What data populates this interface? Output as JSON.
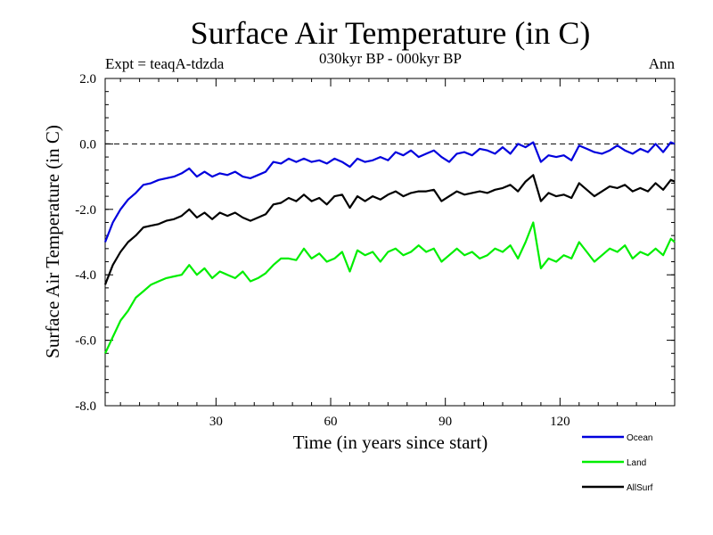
{
  "chart_data": {
    "type": "line",
    "title": "Surface Air Temperature (in C)",
    "subtitle": "030kyr BP - 000kyr BP",
    "experiment": "Expt = teaqA-tdzda",
    "season": "Ann",
    "xlabel": "Time (in years since start)",
    "ylabel": "Surface Air Temperature (in C)",
    "xlim": [
      1,
      150
    ],
    "ylim": [
      -8.0,
      2.0
    ],
    "xticks": [
      30,
      60,
      90,
      120
    ],
    "xtick_labels": [
      "30",
      "60",
      "90",
      "120"
    ],
    "yticks": [
      -8.0,
      -6.0,
      -4.0,
      -2.0,
      0.0,
      2.0
    ],
    "ytick_labels": [
      "-8.0",
      "-6.0",
      "-4.0",
      "-2.0",
      "0.0",
      "2.0"
    ],
    "reference_line": {
      "y": 0.0,
      "style": "dashed"
    },
    "legend_position": "bottom-right, outside plot",
    "series": [
      {
        "name": "Ocean",
        "color": "#0000dd",
        "x": [
          1,
          3,
          5,
          7,
          9,
          11,
          13,
          15,
          17,
          19,
          21,
          23,
          25,
          27,
          29,
          31,
          33,
          35,
          37,
          39,
          41,
          43,
          45,
          47,
          49,
          51,
          53,
          55,
          57,
          59,
          61,
          63,
          65,
          67,
          69,
          71,
          73,
          75,
          77,
          79,
          81,
          83,
          85,
          87,
          89,
          91,
          93,
          95,
          97,
          99,
          101,
          103,
          105,
          107,
          109,
          111,
          113,
          115,
          117,
          119,
          121,
          123,
          125,
          127,
          129,
          131,
          133,
          135,
          137,
          139,
          141,
          143,
          145,
          147,
          149,
          150
        ],
        "values": [
          -3.0,
          -2.4,
          -2.0,
          -1.7,
          -1.5,
          -1.25,
          -1.2,
          -1.1,
          -1.05,
          -1.0,
          -0.9,
          -0.75,
          -1.0,
          -0.85,
          -1.0,
          -0.9,
          -0.95,
          -0.85,
          -1.0,
          -1.05,
          -0.95,
          -0.85,
          -0.55,
          -0.6,
          -0.45,
          -0.55,
          -0.45,
          -0.55,
          -0.5,
          -0.6,
          -0.45,
          -0.55,
          -0.7,
          -0.45,
          -0.55,
          -0.5,
          -0.4,
          -0.5,
          -0.25,
          -0.35,
          -0.2,
          -0.4,
          -0.3,
          -0.2,
          -0.4,
          -0.55,
          -0.3,
          -0.25,
          -0.35,
          -0.15,
          -0.2,
          -0.3,
          -0.1,
          -0.3,
          0.0,
          -0.1,
          0.05,
          -0.55,
          -0.35,
          -0.4,
          -0.35,
          -0.5,
          -0.05,
          -0.15,
          -0.25,
          -0.3,
          -0.2,
          -0.05,
          -0.2,
          -0.3,
          -0.15,
          -0.25,
          0.0,
          -0.25,
          0.05,
          0.0
        ]
      },
      {
        "name": "Land",
        "color": "#00ee00",
        "x": [
          1,
          3,
          5,
          7,
          9,
          11,
          13,
          15,
          17,
          19,
          21,
          23,
          25,
          27,
          29,
          31,
          33,
          35,
          37,
          39,
          41,
          43,
          45,
          47,
          49,
          51,
          53,
          55,
          57,
          59,
          61,
          63,
          65,
          67,
          69,
          71,
          73,
          75,
          77,
          79,
          81,
          83,
          85,
          87,
          89,
          91,
          93,
          95,
          97,
          99,
          101,
          103,
          105,
          107,
          109,
          111,
          113,
          115,
          117,
          119,
          121,
          123,
          125,
          127,
          129,
          131,
          133,
          135,
          137,
          139,
          141,
          143,
          145,
          147,
          149,
          150
        ],
        "values": [
          -6.4,
          -5.9,
          -5.4,
          -5.1,
          -4.7,
          -4.5,
          -4.3,
          -4.2,
          -4.1,
          -4.05,
          -4.0,
          -3.7,
          -4.0,
          -3.8,
          -4.1,
          -3.9,
          -4.0,
          -4.1,
          -3.9,
          -4.2,
          -4.1,
          -3.95,
          -3.7,
          -3.5,
          -3.5,
          -3.55,
          -3.2,
          -3.5,
          -3.35,
          -3.6,
          -3.5,
          -3.3,
          -3.9,
          -3.25,
          -3.4,
          -3.3,
          -3.6,
          -3.3,
          -3.2,
          -3.4,
          -3.3,
          -3.1,
          -3.3,
          -3.2,
          -3.6,
          -3.4,
          -3.2,
          -3.4,
          -3.3,
          -3.5,
          -3.4,
          -3.2,
          -3.3,
          -3.1,
          -3.5,
          -3.0,
          -2.4,
          -3.8,
          -3.5,
          -3.6,
          -3.4,
          -3.5,
          -3.0,
          -3.3,
          -3.6,
          -3.4,
          -3.2,
          -3.3,
          -3.1,
          -3.5,
          -3.3,
          -3.4,
          -3.2,
          -3.4,
          -2.9,
          -3.0
        ]
      },
      {
        "name": "AllSurf",
        "color": "#000000",
        "x": [
          1,
          3,
          5,
          7,
          9,
          11,
          13,
          15,
          17,
          19,
          21,
          23,
          25,
          27,
          29,
          31,
          33,
          35,
          37,
          39,
          41,
          43,
          45,
          47,
          49,
          51,
          53,
          55,
          57,
          59,
          61,
          63,
          65,
          67,
          69,
          71,
          73,
          75,
          77,
          79,
          81,
          83,
          85,
          87,
          89,
          91,
          93,
          95,
          97,
          99,
          101,
          103,
          105,
          107,
          109,
          111,
          113,
          115,
          117,
          119,
          121,
          123,
          125,
          127,
          129,
          131,
          133,
          135,
          137,
          139,
          141,
          143,
          145,
          147,
          149,
          150
        ],
        "values": [
          -4.3,
          -3.7,
          -3.3,
          -3.0,
          -2.8,
          -2.55,
          -2.5,
          -2.45,
          -2.35,
          -2.3,
          -2.2,
          -2.0,
          -2.25,
          -2.1,
          -2.3,
          -2.1,
          -2.2,
          -2.1,
          -2.25,
          -2.35,
          -2.25,
          -2.15,
          -1.85,
          -1.8,
          -1.65,
          -1.75,
          -1.55,
          -1.75,
          -1.65,
          -1.85,
          -1.6,
          -1.55,
          -1.95,
          -1.6,
          -1.75,
          -1.6,
          -1.7,
          -1.55,
          -1.45,
          -1.6,
          -1.5,
          -1.45,
          -1.45,
          -1.4,
          -1.75,
          -1.6,
          -1.45,
          -1.55,
          -1.5,
          -1.45,
          -1.5,
          -1.4,
          -1.35,
          -1.25,
          -1.45,
          -1.15,
          -0.95,
          -1.75,
          -1.5,
          -1.6,
          -1.55,
          -1.65,
          -1.2,
          -1.4,
          -1.6,
          -1.45,
          -1.3,
          -1.35,
          -1.25,
          -1.45,
          -1.35,
          -1.45,
          -1.2,
          -1.4,
          -1.1,
          -1.15
        ]
      }
    ]
  }
}
